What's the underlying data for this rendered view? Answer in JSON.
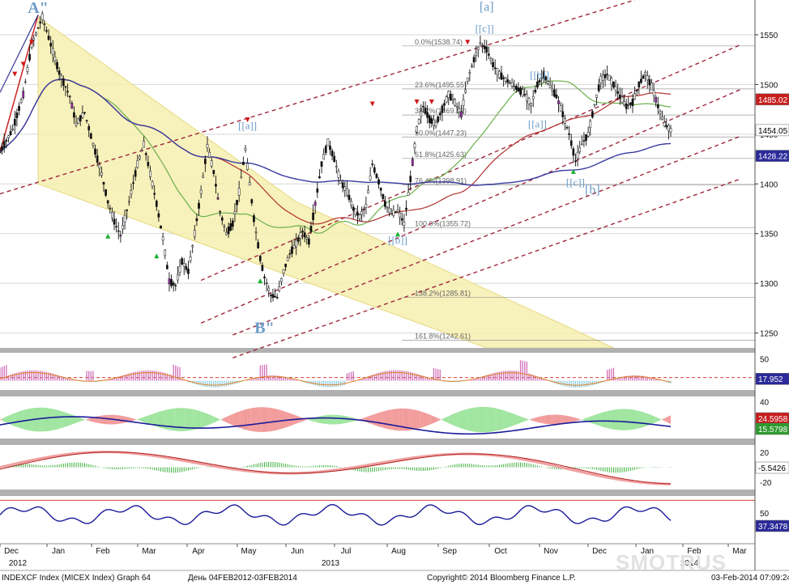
{
  "footer": {
    "left": "INDEXCF Index (MICEX Index) Graph 64",
    "range": "День 04FEB2012-03FEB2014",
    "copyright": "Copyright© 2014 Bloomberg Finance L.P.",
    "timestamp": "03-Feb-2014 07:09:24"
  },
  "watermark": "SMOTRUS",
  "colors": {
    "price": "#111111",
    "ma_green": "#6ab04c",
    "ma_red": "#b03030",
    "ma_blue": "#3a3aa0",
    "channel": "#a0283c",
    "fib": "#999999",
    "triangle_fill": "#f6efb0",
    "label_blue": "#6a9bc8"
  },
  "chart_data": {
    "type": "line",
    "x_labels": [
      "Dec",
      "Jan",
      "Feb",
      "Mar",
      "Apr",
      "May",
      "Jun",
      "Jul",
      "Aug",
      "Sep",
      "Oct",
      "Nov",
      "Dec",
      "Jan",
      "Feb",
      "Mar"
    ],
    "year_labels": [
      "2012",
      "2013",
      "2014"
    ],
    "price_axis": {
      "ticks": [
        1250,
        1300,
        1350,
        1400,
        1450,
        1500,
        1550
      ],
      "ylim": [
        1235,
        1585
      ]
    },
    "price_key": [
      [
        0,
        1432
      ],
      [
        6,
        1455
      ],
      [
        11,
        1490
      ],
      [
        15,
        1540
      ],
      [
        20,
        1568
      ],
      [
        24,
        1540
      ],
      [
        28,
        1512
      ],
      [
        33,
        1488
      ],
      [
        36,
        1460
      ],
      [
        40,
        1472
      ],
      [
        44,
        1440
      ],
      [
        48,
        1410
      ],
      [
        51,
        1382
      ],
      [
        54,
        1362
      ],
      [
        57,
        1348
      ],
      [
        61,
        1382
      ],
      [
        65,
        1420
      ],
      [
        68,
        1440
      ],
      [
        71,
        1410
      ],
      [
        74,
        1380
      ],
      [
        77,
        1345
      ],
      [
        80,
        1302
      ],
      [
        83,
        1298
      ],
      [
        86,
        1322
      ],
      [
        89,
        1312
      ],
      [
        92,
        1350
      ],
      [
        95,
        1392
      ],
      [
        98,
        1438
      ],
      [
        101,
        1412
      ],
      [
        104,
        1372
      ],
      [
        107,
        1350
      ],
      [
        110,
        1360
      ],
      [
        113,
        1392
      ],
      [
        116,
        1435
      ],
      [
        118,
        1400
      ],
      [
        120,
        1365
      ],
      [
        123,
        1325
      ],
      [
        125,
        1306
      ],
      [
        128,
        1288
      ],
      [
        131,
        1286
      ],
      [
        134,
        1312
      ],
      [
        137,
        1330
      ],
      [
        140,
        1340
      ],
      [
        143,
        1352
      ],
      [
        146,
        1342
      ],
      [
        149,
        1380
      ],
      [
        152,
        1420
      ],
      [
        155,
        1442
      ],
      [
        158,
        1425
      ],
      [
        161,
        1402
      ],
      [
        164,
        1392
      ],
      [
        167,
        1375
      ],
      [
        170,
        1367
      ],
      [
        173,
        1378
      ],
      [
        176,
        1420
      ],
      [
        179,
        1402
      ],
      [
        182,
        1380
      ],
      [
        185,
        1370
      ],
      [
        188,
        1373
      ],
      [
        191,
        1360
      ],
      [
        194,
        1405
      ],
      [
        197,
        1455
      ],
      [
        200,
        1478
      ],
      [
        203,
        1465
      ],
      [
        206,
        1460
      ],
      [
        209,
        1475
      ],
      [
        212,
        1490
      ],
      [
        215,
        1482
      ],
      [
        218,
        1470
      ],
      [
        221,
        1505
      ],
      [
        224,
        1525
      ],
      [
        227,
        1542
      ],
      [
        230,
        1535
      ],
      [
        233,
        1520
      ],
      [
        236,
        1510
      ],
      [
        239,
        1505
      ],
      [
        242,
        1500
      ],
      [
        245,
        1495
      ],
      [
        248,
        1490
      ],
      [
        251,
        1480
      ],
      [
        254,
        1500
      ],
      [
        257,
        1510
      ],
      [
        260,
        1498
      ],
      [
        263,
        1488
      ],
      [
        266,
        1470
      ],
      [
        269,
        1450
      ],
      [
        272,
        1423
      ],
      [
        275,
        1440
      ],
      [
        278,
        1450
      ],
      [
        281,
        1480
      ],
      [
        284,
        1505
      ],
      [
        287,
        1510
      ],
      [
        290,
        1500
      ],
      [
        293,
        1488
      ],
      [
        296,
        1478
      ],
      [
        299,
        1482
      ],
      [
        302,
        1500
      ],
      [
        305,
        1511
      ],
      [
        308,
        1498
      ],
      [
        311,
        1478
      ],
      [
        314,
        1460
      ],
      [
        317,
        1454
      ]
    ],
    "fib_levels": [
      {
        "label": "0.0%(1538.74)",
        "value": 1538.74
      },
      {
        "label": "23.6%(1495.55)",
        "value": 1495.55
      },
      {
        "label": "38.2%(1469.32)",
        "value": 1469.32
      },
      {
        "label": "50.0%(1447.23)",
        "value": 1447.23
      },
      {
        "label": "61.8%(1425.63)",
        "value": 1425.63
      },
      {
        "label": "76.4%(1398.91)",
        "value": 1398.91
      },
      {
        "label": "100.0%(1355.72)",
        "value": 1355.72
      },
      {
        "label": "138.2%(1285.81)",
        "value": 1285.81
      },
      {
        "label": "161.8%(1242.61)",
        "value": 1242.61
      }
    ],
    "price_badges": [
      {
        "value": "1485.02",
        "y": 1485.02,
        "bg": "#c81e1e",
        "fg": "#ffffff"
      },
      {
        "value": "1454.05",
        "y": 1454.05,
        "bg": "#ffffff",
        "fg": "#000000"
      },
      {
        "value": "1428.22",
        "y": 1428.22,
        "bg": "#2a2a9a",
        "fg": "#ffffff"
      }
    ],
    "wave_labels": [
      {
        "text": "A\"",
        "i": 18,
        "y": 1572,
        "size": 20,
        "bold": true
      },
      {
        "text": "B\"",
        "i": 125,
        "y": 1250,
        "size": 20,
        "bold": true
      },
      {
        "text": "[a]",
        "i": 230,
        "y": 1574,
        "size": 16
      },
      {
        "text": "[[c]]",
        "i": 229,
        "y": 1553,
        "size": 13
      },
      {
        "text": "[[a]]",
        "i": 117,
        "y": 1455,
        "size": 13
      },
      {
        "text": "[[b]]",
        "i": 188,
        "y": 1340,
        "size": 13
      },
      {
        "text": "[[b]]",
        "i": 255,
        "y": 1506,
        "size": 13
      },
      {
        "text": "[[a]]",
        "i": 254,
        "y": 1457,
        "size": 13
      },
      {
        "text": "[[c]]",
        "i": 272,
        "y": 1398,
        "size": 13
      },
      {
        "text": "[b]",
        "i": 280,
        "y": 1390,
        "size": 16
      }
    ],
    "ind1": {
      "axis_ticks": [
        50
      ],
      "badge": "17.952",
      "series_last": 17.952,
      "range": [
        0,
        60
      ]
    },
    "ind2": {
      "axis_ticks": [
        40,
        20
      ],
      "badges": [
        {
          "value": "24.5958",
          "bg": "#c81e1e",
          "fg": "#ffffff"
        },
        {
          "value": "15.5798",
          "bg": "#2e9a2e",
          "fg": "#ffffff"
        }
      ],
      "range": [
        5,
        45
      ]
    },
    "ind3": {
      "axis_ticks": [
        20,
        -20
      ],
      "badge": "-5.5426",
      "range": [
        -30,
        30
      ]
    },
    "ind4": {
      "axis_ticks": [
        50
      ],
      "badge": "37.3478",
      "range": [
        20,
        70
      ]
    }
  }
}
